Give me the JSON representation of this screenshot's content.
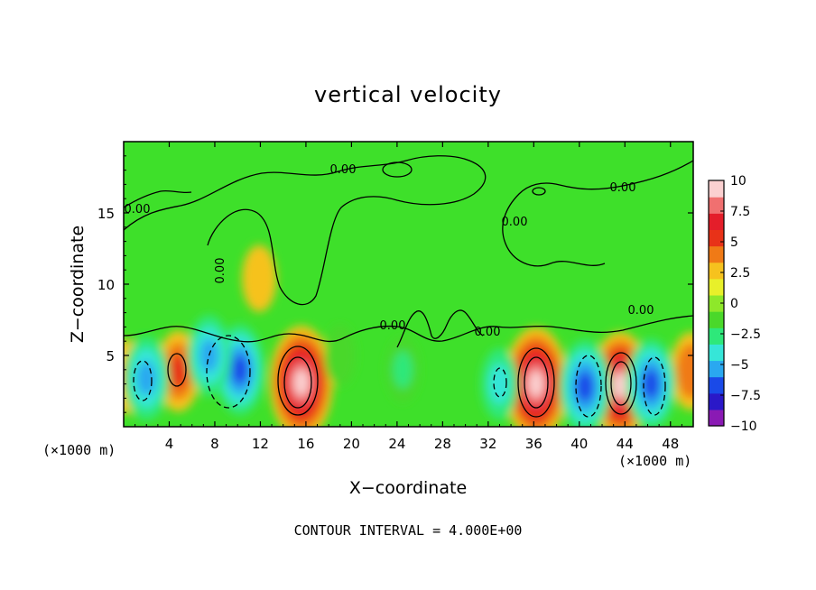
{
  "chart_data": {
    "type": "heatmap",
    "title": "vertical velocity",
    "xlabel": "X−coordinate",
    "ylabel": "Z−coordinate",
    "x_unit_label": "(×1000 m)",
    "x_unit_label_right": "(×1000 m)",
    "footer": "CONTOUR INTERVAL = 4.000E+00",
    "xlim": [
      0,
      50
    ],
    "ylim": [
      0,
      20
    ],
    "x_ticks": [
      4,
      8,
      12,
      16,
      20,
      24,
      28,
      32,
      36,
      40,
      44,
      48
    ],
    "x_tick_labels": [
      "4",
      "8",
      "12",
      "16",
      "20",
      "24",
      "28",
      "32",
      "36",
      "40",
      "44",
      "48"
    ],
    "y_ticks": [
      5,
      10,
      15
    ],
    "y_tick_labels": [
      "5",
      "10",
      "15"
    ],
    "contour_labels": [
      "0.00",
      "0.00",
      "0.00",
      "0.00",
      "0.00",
      "0.00",
      "0.00",
      "0.00"
    ],
    "colorbar": {
      "min": -10,
      "max": 10,
      "ticks": [
        10,
        7.5,
        5,
        2.5,
        0,
        -2.5,
        -5,
        -7.5,
        -10
      ],
      "tick_labels": [
        "10",
        "7.5",
        "5",
        "2.5",
        "0",
        "−2.5",
        "−5",
        "−7.5",
        "−10"
      ],
      "colors": [
        "#8a1ab4",
        "#2a18c8",
        "#1a4ae8",
        "#2aa8f0",
        "#36e6d8",
        "#2ee87a",
        "#4ad82a",
        "#8ee82a",
        "#e8f02a",
        "#f6c21e",
        "#f07a16",
        "#e83218",
        "#e41e2a",
        "#f07070",
        "#fbd0d0"
      ]
    },
    "features": [
      {
        "x": 15.6,
        "z": 3.1,
        "w": 10
      },
      {
        "x": 36.2,
        "z": 3.0,
        "w": 10
      },
      {
        "x": 43.6,
        "z": 2.9,
        "w": 9
      },
      {
        "x": 4.8,
        "z": 3.9,
        "w": 5
      },
      {
        "x": 49.8,
        "z": 3.9,
        "w": 4.5
      },
      {
        "x": 0.3,
        "z": 3.5,
        "w": 4
      },
      {
        "x": 11.9,
        "z": 10.4,
        "w": 2.8
      },
      {
        "x": 2,
        "z": 3.4,
        "w": -5.5
      },
      {
        "x": 10.2,
        "z": 4.0,
        "w": -6.5
      },
      {
        "x": 7.5,
        "z": 5.0,
        "w": -5
      },
      {
        "x": 40.5,
        "z": 2.8,
        "w": -7
      },
      {
        "x": 46.3,
        "z": 3.0,
        "w": -6.5
      },
      {
        "x": 33,
        "z": 3.0,
        "w": -3.5
      },
      {
        "x": 24.5,
        "z": 4.0,
        "w": -2.5
      },
      {
        "x": 19,
        "z": 5.0,
        "w": -2
      }
    ]
  }
}
